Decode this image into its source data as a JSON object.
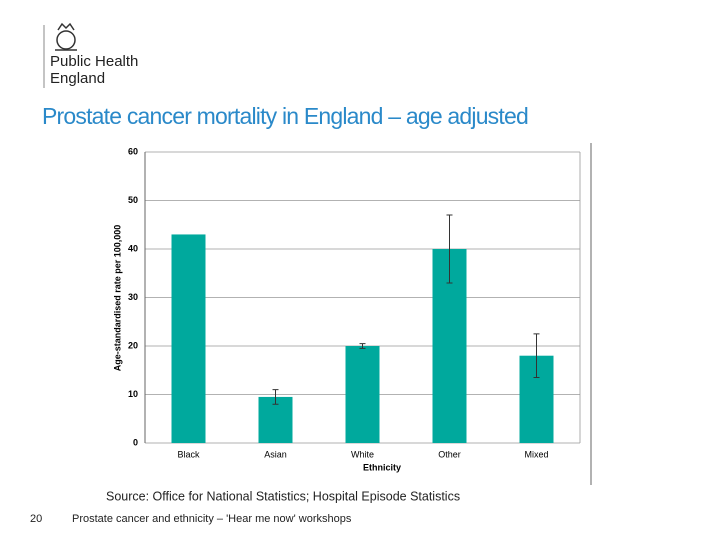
{
  "header": {
    "logo_text": [
      "Public Health",
      "England"
    ]
  },
  "chart_data": {
    "type": "bar",
    "title": "Prostate cancer mortality in England – age adjusted",
    "y_label": "Age-standardised rate per 100,000",
    "x_label": "Ethnicity",
    "categories": [
      "Black",
      "Asian",
      "White",
      "Other",
      "Mixed"
    ],
    "values": [
      43,
      9.5,
      20,
      40,
      18
    ],
    "errors": [
      null,
      1.5,
      0.5,
      7,
      4.5
    ],
    "color": "#00a99d",
    "ylim": [
      0,
      60
    ],
    "yticks": [
      0,
      10,
      20,
      30,
      40,
      50,
      60
    ],
    "grid": true,
    "source": "Source: Office for National Statistics; Hospital Episode Statistics"
  },
  "footer": {
    "page": "20",
    "text": "Prostate cancer and ethnicity – 'Hear me now' workshops"
  }
}
